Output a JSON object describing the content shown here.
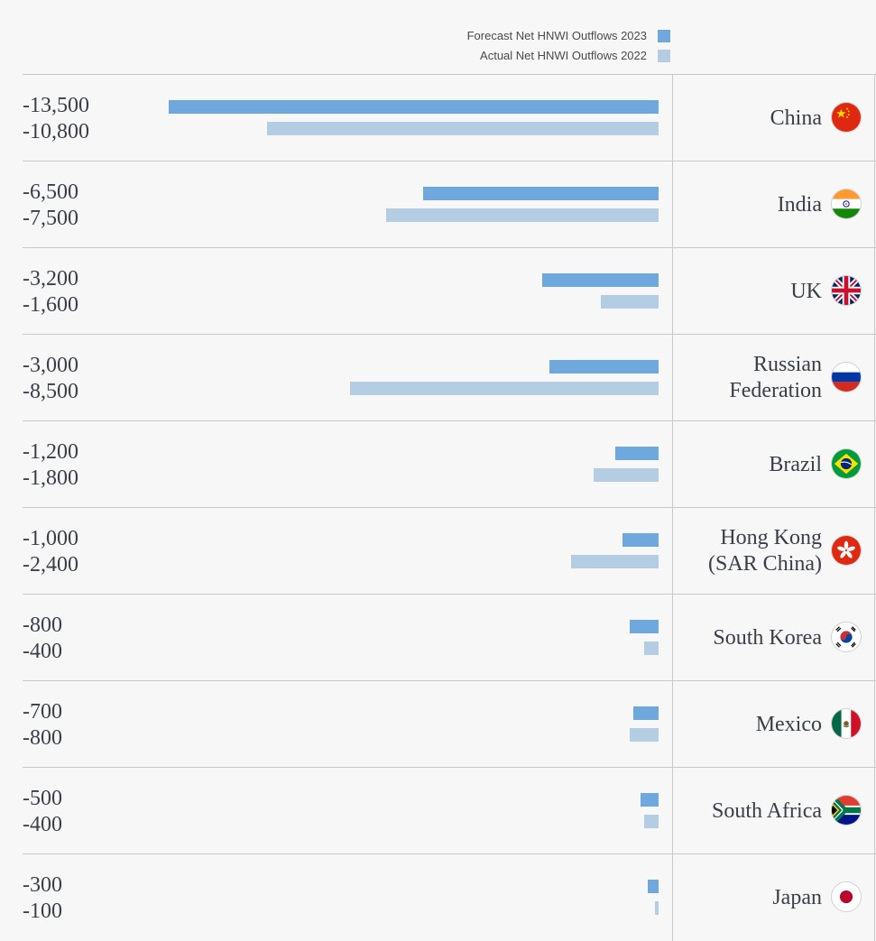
{
  "chart_data": {
    "type": "bar",
    "orientation": "horizontal",
    "legend": {
      "forecast_label": "Forecast Net HNWI Outflows 2023",
      "actual_label": "Actual Net HNWI Outflows 2022",
      "forecast_color": "#6fa8dc",
      "actual_color": "#b4cde3"
    },
    "xlim": [
      -14000,
      0
    ],
    "rows": [
      {
        "country_lines": [
          "China"
        ],
        "forecast": -13500,
        "actual": -10800,
        "forecast_label": "-13,500",
        "actual_label": "-10,800",
        "flag_icon": "china-flag-icon"
      },
      {
        "country_lines": [
          "India"
        ],
        "forecast": -6500,
        "actual": -7500,
        "forecast_label": "-6,500",
        "actual_label": "-7,500",
        "flag_icon": "india-flag-icon"
      },
      {
        "country_lines": [
          "UK"
        ],
        "forecast": -3200,
        "actual": -1600,
        "forecast_label": "-3,200",
        "actual_label": "-1,600",
        "flag_icon": "uk-flag-icon"
      },
      {
        "country_lines": [
          "Russian",
          "Federation"
        ],
        "forecast": -3000,
        "actual": -8500,
        "forecast_label": "-3,000",
        "actual_label": "-8,500",
        "flag_icon": "russia-flag-icon"
      },
      {
        "country_lines": [
          "Brazil"
        ],
        "forecast": -1200,
        "actual": -1800,
        "forecast_label": "-1,200",
        "actual_label": "-1,800",
        "flag_icon": "brazil-flag-icon"
      },
      {
        "country_lines": [
          "Hong Kong",
          "(SAR China)"
        ],
        "forecast": -1000,
        "actual": -2400,
        "forecast_label": "-1,000",
        "actual_label": "-2,400",
        "flag_icon": "hong-kong-flag-icon"
      },
      {
        "country_lines": [
          "South Korea"
        ],
        "forecast": -800,
        "actual": -400,
        "forecast_label": "-800",
        "actual_label": "-400",
        "flag_icon": "south-korea-flag-icon"
      },
      {
        "country_lines": [
          "Mexico"
        ],
        "forecast": -700,
        "actual": -800,
        "forecast_label": "-700",
        "actual_label": "-800",
        "flag_icon": "mexico-flag-icon"
      },
      {
        "country_lines": [
          "South Africa"
        ],
        "forecast": -500,
        "actual": -400,
        "forecast_label": "-500",
        "actual_label": "-400",
        "flag_icon": "south-africa-flag-icon"
      },
      {
        "country_lines": [
          "Japan"
        ],
        "forecast": -300,
        "actual": -100,
        "forecast_label": "-300",
        "actual_label": "-100",
        "flag_icon": "japan-flag-icon"
      }
    ]
  }
}
